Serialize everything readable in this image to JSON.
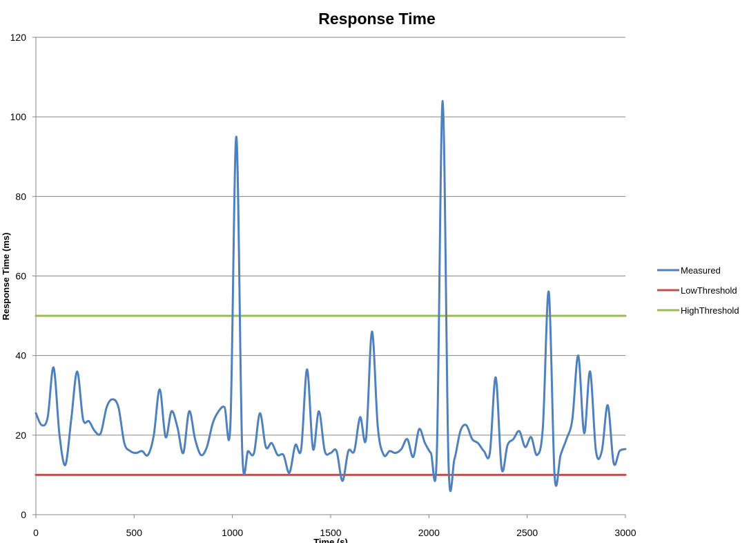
{
  "chart_data": {
    "type": "line",
    "title": "Response Time",
    "xlabel": "Time (s)",
    "ylabel": "Response Time (ms)",
    "xlim": [
      0,
      3000
    ],
    "ylim": [
      0,
      120
    ],
    "x_ticks": [
      0,
      500,
      1000,
      1500,
      2000,
      2500,
      3000
    ],
    "y_ticks": [
      0,
      20,
      40,
      60,
      80,
      100,
      120
    ],
    "grid": "horizontal",
    "legend_position": "right",
    "series": [
      {
        "name": "Measured",
        "color": "#4f81bd",
        "x": [
          0,
          30,
          60,
          90,
          120,
          150,
          180,
          210,
          240,
          270,
          300,
          330,
          360,
          390,
          420,
          450,
          480,
          510,
          540,
          570,
          600,
          630,
          660,
          690,
          720,
          750,
          780,
          810,
          840,
          870,
          900,
          930,
          960,
          990,
          1020,
          1050,
          1080,
          1110,
          1140,
          1170,
          1200,
          1230,
          1260,
          1290,
          1320,
          1350,
          1380,
          1410,
          1440,
          1470,
          1500,
          1530,
          1560,
          1590,
          1620,
          1650,
          1680,
          1710,
          1740,
          1770,
          1800,
          1830,
          1860,
          1890,
          1920,
          1950,
          1980,
          2010,
          2040,
          2070,
          2100,
          2130,
          2160,
          2190,
          2220,
          2250,
          2280,
          2310,
          2340,
          2370,
          2400,
          2430,
          2460,
          2490,
          2520,
          2550,
          2580,
          2610,
          2640,
          2670,
          2700,
          2730,
          2760,
          2790,
          2820,
          2850,
          2880,
          2910,
          2940,
          2970,
          3000
        ],
        "values": [
          25.5,
          22.5,
          24.5,
          37,
          20,
          12.5,
          24,
          36,
          24,
          23.5,
          21,
          20.5,
          27,
          29,
          27,
          18,
          16,
          15.5,
          16,
          15,
          20,
          31.5,
          19.5,
          26,
          22,
          15.5,
          26,
          19,
          15,
          17,
          23,
          26,
          27,
          23,
          95,
          16,
          16,
          15.5,
          25.5,
          17,
          18,
          15,
          15,
          10.5,
          17.5,
          16.5,
          36.5,
          16.5,
          26,
          16,
          15.5,
          16,
          8.5,
          16,
          16,
          24.5,
          19,
          46,
          22,
          15,
          16,
          15.5,
          16.5,
          19,
          14.5,
          21.5,
          18,
          15.5,
          15,
          104,
          12.5,
          14,
          21,
          22.5,
          19,
          18,
          16,
          15.5,
          34.5,
          11.5,
          17.5,
          19,
          21,
          17,
          19.5,
          15,
          22,
          56,
          9.5,
          15,
          19,
          24,
          40,
          20.5,
          36,
          16,
          16,
          27.5,
          13,
          16,
          16.5
        ]
      },
      {
        "name": "LowThreshold",
        "color": "#c0504d",
        "x": [
          0,
          3000
        ],
        "values": [
          10,
          10
        ]
      },
      {
        "name": "HighThreshold",
        "color": "#9bbb59",
        "x": [
          0,
          3000
        ],
        "values": [
          50,
          50
        ]
      }
    ]
  }
}
